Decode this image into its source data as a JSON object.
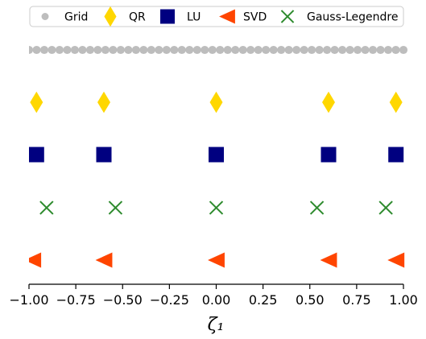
{
  "chart_data": {
    "type": "scatter",
    "title": "",
    "xlabel": "ζ₁",
    "ylabel": "",
    "xlim": [
      -1.0,
      1.0
    ],
    "xticks": [
      "−1.00",
      "−0.75",
      "−0.50",
      "−0.25",
      "0.00",
      "0.25",
      "0.50",
      "0.75",
      "1.00"
    ],
    "grid": false,
    "legend_position": "top",
    "grid_points": 50,
    "series": [
      {
        "name": "Grid",
        "marker": "circle",
        "color": "#bdbdbd",
        "row": 1,
        "x": [
          -1.0,
          -0.95918,
          -0.91837,
          -0.87755,
          -0.83673,
          -0.79592,
          -0.7551,
          -0.71429,
          -0.67347,
          -0.63265,
          -0.59184,
          -0.55102,
          -0.5102,
          -0.46939,
          -0.42857,
          -0.38776,
          -0.34694,
          -0.30612,
          -0.26531,
          -0.22449,
          -0.18367,
          -0.14286,
          -0.10204,
          -0.06122,
          -0.02041,
          0.02041,
          0.06122,
          0.10204,
          0.14286,
          0.18367,
          0.22449,
          0.26531,
          0.30612,
          0.34694,
          0.38776,
          0.42857,
          0.46939,
          0.5102,
          0.55102,
          0.59184,
          0.63265,
          0.67347,
          0.71429,
          0.7551,
          0.79592,
          0.83673,
          0.87755,
          0.91837,
          0.95918,
          1.0
        ]
      },
      {
        "name": "QR",
        "marker": "diamond",
        "color": "#ffd700",
        "row": 2,
        "x": [
          -0.96,
          -0.6,
          0.0,
          0.6,
          0.96
        ]
      },
      {
        "name": "LU",
        "marker": "square",
        "color": "#000080",
        "row": 3,
        "x": [
          -0.96,
          -0.6,
          0.0,
          0.6,
          0.96
        ]
      },
      {
        "name": "SVD",
        "marker": "triangle-left",
        "color": "#ff4500",
        "row": 5,
        "x": [
          -0.98,
          -0.6,
          0.0,
          0.6,
          0.96
        ]
      },
      {
        "name": "Gauss-Legendre",
        "marker": "x",
        "color": "#2e8b2e",
        "row": 4,
        "x": [
          -0.906,
          -0.538,
          0.0,
          0.538,
          0.906
        ]
      }
    ]
  }
}
